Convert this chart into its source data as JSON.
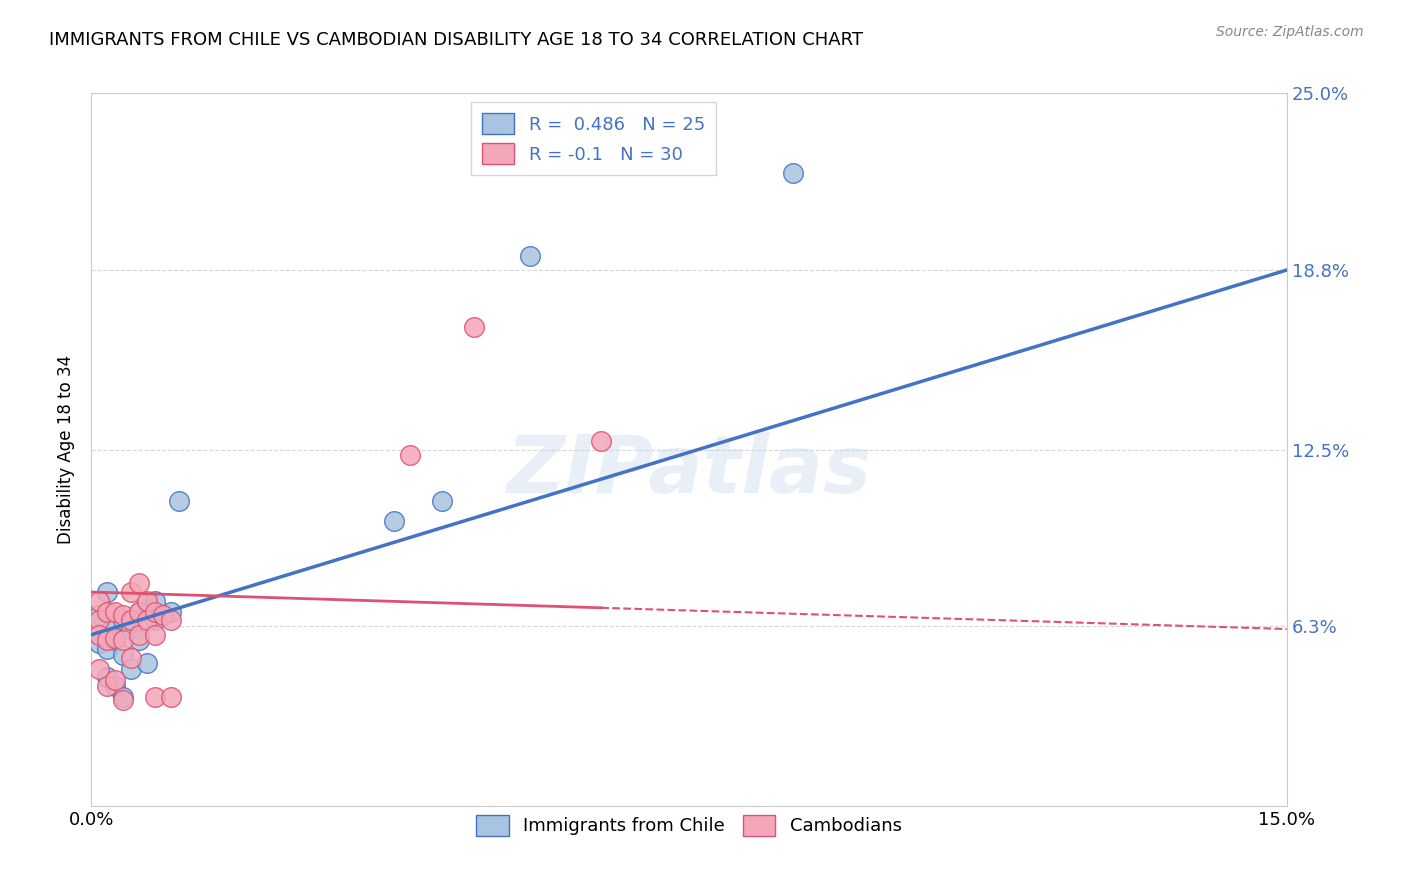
{
  "title": "IMMIGRANTS FROM CHILE VS CAMBODIAN DISABILITY AGE 18 TO 34 CORRELATION CHART",
  "source": "Source: ZipAtlas.com",
  "xlabel_label": "Immigrants from Chile",
  "ylabel_label": "Disability Age 18 to 34",
  "xmin": 0.0,
  "xmax": 0.15,
  "ymin": 0.0,
  "ymax": 0.25,
  "yticks": [
    0.0,
    0.063,
    0.125,
    0.188,
    0.25
  ],
  "ytick_labels": [
    "",
    "6.3%",
    "12.5%",
    "18.8%",
    "25.0%"
  ],
  "xticks": [
    0.0,
    0.15
  ],
  "xtick_labels": [
    "0.0%",
    "15.0%"
  ],
  "chile_color": "#a8c4e0",
  "chile_line_color": "#4472c4",
  "cambodian_color": "#f4a7b9",
  "cambodian_line_color": "#e05070",
  "R_chile": 0.486,
  "N_chile": 25,
  "R_cambodian": -0.1,
  "N_cambodian": 30,
  "grid_color": "#cccccc",
  "right_tick_color": "#4472c4",
  "watermark": "ZIPatlas",
  "chile_line_x0": 0.0,
  "chile_line_y0": 0.06,
  "chile_line_x1": 0.15,
  "chile_line_y1": 0.188,
  "cambodian_line_x0": 0.0,
  "cambodian_line_y0": 0.075,
  "cambodian_line_x1": 0.15,
  "cambodian_line_y1": 0.062,
  "cambodian_solid_xend": 0.064,
  "chile_scatter_x": [
    0.001,
    0.001,
    0.002,
    0.002,
    0.002,
    0.003,
    0.003,
    0.003,
    0.004,
    0.004,
    0.004,
    0.005,
    0.005,
    0.006,
    0.006,
    0.007,
    0.007,
    0.008,
    0.008,
    0.01,
    0.011,
    0.038,
    0.044,
    0.055,
    0.088
  ],
  "chile_scatter_y": [
    0.067,
    0.057,
    0.075,
    0.055,
    0.045,
    0.063,
    0.042,
    0.058,
    0.065,
    0.053,
    0.038,
    0.062,
    0.048,
    0.068,
    0.058,
    0.05,
    0.071,
    0.072,
    0.065,
    0.068,
    0.107,
    0.1,
    0.107,
    0.193,
    0.222
  ],
  "cambodian_scatter_x": [
    0.001,
    0.001,
    0.001,
    0.001,
    0.002,
    0.002,
    0.002,
    0.003,
    0.003,
    0.003,
    0.004,
    0.004,
    0.004,
    0.005,
    0.005,
    0.005,
    0.006,
    0.006,
    0.006,
    0.007,
    0.007,
    0.008,
    0.008,
    0.008,
    0.009,
    0.01,
    0.01,
    0.04,
    0.048,
    0.064
  ],
  "cambodian_scatter_y": [
    0.065,
    0.072,
    0.06,
    0.048,
    0.068,
    0.058,
    0.042,
    0.068,
    0.059,
    0.044,
    0.067,
    0.058,
    0.037,
    0.065,
    0.075,
    0.052,
    0.068,
    0.078,
    0.06,
    0.072,
    0.065,
    0.068,
    0.06,
    0.038,
    0.067,
    0.065,
    0.038,
    0.123,
    0.168,
    0.128
  ]
}
